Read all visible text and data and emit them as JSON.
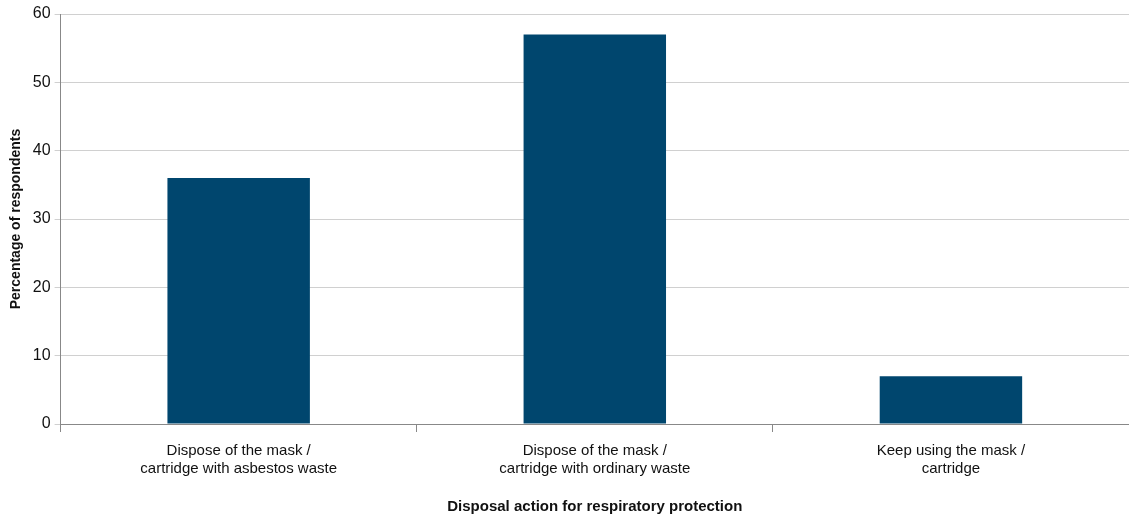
{
  "chart_data": {
    "type": "bar",
    "xlabel": "Disposal action for respiratory protection",
    "ylabel": "Percentage of respondents",
    "categories": [
      "Dispose of the mask / cartridge with asbestos waste",
      "Dispose of the mask / cartridge with ordinary waste",
      "Keep using the mask / cartridge"
    ],
    "values": [
      36,
      57,
      7
    ],
    "color": "#00466e",
    "ylim": [
      0,
      60
    ],
    "yticks": [
      0,
      10,
      20,
      30,
      40,
      50,
      60
    ],
    "grid": "y",
    "legend": false
  }
}
